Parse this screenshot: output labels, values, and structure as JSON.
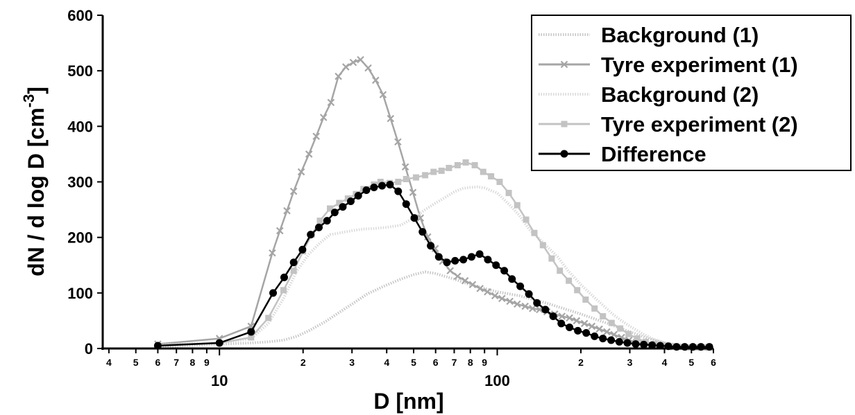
{
  "chart_data": {
    "type": "line",
    "xscale": "log",
    "xlim": [
      3.8,
      600
    ],
    "ylim": [
      0,
      600
    ],
    "xlabel": "D [nm]",
    "ylabel": "dN / d log D [cm-3]",
    "ylabel_parts": {
      "main": "dN / d log D [cm",
      "sup": "-3",
      "end": "]"
    },
    "yticks": [
      "0",
      "100",
      "200",
      "300",
      "400",
      "500",
      "600"
    ],
    "yticks_values": [
      0,
      100,
      200,
      300,
      400,
      500,
      600
    ],
    "xticks_minor": [
      {
        "v": 4,
        "label": "4"
      },
      {
        "v": 5,
        "label": "5"
      },
      {
        "v": 6,
        "label": "6"
      },
      {
        "v": 7,
        "label": "7"
      },
      {
        "v": 8,
        "label": "8"
      },
      {
        "v": 9,
        "label": "9"
      },
      {
        "v": 20,
        "label": "2"
      },
      {
        "v": 30,
        "label": "3"
      },
      {
        "v": 40,
        "label": "4"
      },
      {
        "v": 50,
        "label": "5"
      },
      {
        "v": 60,
        "label": "6"
      },
      {
        "v": 70,
        "label": "7"
      },
      {
        "v": 80,
        "label": "8"
      },
      {
        "v": 90,
        "label": "9"
      },
      {
        "v": 200,
        "label": "2"
      },
      {
        "v": 300,
        "label": "3"
      },
      {
        "v": 400,
        "label": "4"
      },
      {
        "v": 500,
        "label": "5"
      },
      {
        "v": 600,
        "label": "6"
      }
    ],
    "xticks_major": [
      {
        "v": 10,
        "label": "10"
      },
      {
        "v": 100,
        "label": "100"
      }
    ],
    "legend_position": "top-right",
    "grid": false,
    "series": [
      {
        "name": "Background (1)",
        "color": "#c6c6c6",
        "style": "dotted",
        "marker": "none",
        "x": [
          6,
          10,
          13,
          15,
          17,
          19,
          21,
          24,
          27,
          30,
          34,
          39,
          45,
          50,
          55,
          60,
          70,
          80,
          90,
          100,
          120,
          150,
          200,
          250,
          300,
          350,
          400,
          450,
          500,
          560
        ],
        "y": [
          3,
          8,
          10,
          12,
          15,
          22,
          32,
          48,
          65,
          80,
          98,
          112,
          125,
          133,
          138,
          135,
          125,
          115,
          108,
          102,
          95,
          82,
          62,
          45,
          30,
          18,
          10,
          6,
          3,
          2
        ]
      },
      {
        "name": "Tyre experiment (1)",
        "color": "#a5a5a5",
        "style": "solid",
        "marker": "x",
        "x": [
          6,
          10,
          13,
          15.5,
          16.5,
          17.5,
          18.5,
          19.7,
          21,
          22.3,
          23.7,
          25.2,
          26.8,
          28.5,
          30.3,
          32.2,
          34.3,
          36.5,
          38.8,
          41.3,
          43.9,
          46.7,
          49.7,
          52.9,
          56.2,
          59.8,
          63.6,
          67.7,
          72,
          76.6,
          81.5,
          86.7,
          92.2,
          98.1,
          104,
          111,
          118,
          126,
          134,
          142,
          151,
          161,
          171,
          182,
          193,
          206,
          219,
          233,
          248,
          263,
          280,
          298,
          317,
          337,
          358,
          381,
          405,
          431,
          459,
          488,
          519,
          552,
          580
        ],
        "y": [
          8,
          18,
          40,
          172,
          212,
          248,
          283,
          318,
          350,
          382,
          416,
          443,
          490,
          507,
          515,
          520,
          505,
          483,
          457,
          414,
          372,
          327,
          281,
          235,
          201,
          180,
          157,
          140,
          130,
          122,
          115,
          108,
          102,
          95,
          90,
          85,
          80,
          76,
          72,
          70,
          66,
          62,
          58,
          55,
          50,
          45,
          40,
          35,
          30,
          25,
          20,
          15,
          11,
          8,
          6,
          5,
          4,
          3,
          3,
          2,
          2,
          2,
          2
        ]
      },
      {
        "name": "Background (2)",
        "color": "#d9d9d9",
        "style": "dotted",
        "marker": "none",
        "x": [
          6,
          10,
          13,
          15,
          17,
          19,
          21,
          23,
          25,
          27,
          30,
          33,
          36,
          40,
          45,
          50,
          55,
          60,
          65,
          70,
          75,
          80,
          85,
          90,
          100,
          110,
          120,
          130,
          140,
          150,
          165,
          180,
          200,
          220,
          240,
          260,
          280,
          300,
          330,
          360,
          400,
          450,
          500,
          560
        ],
        "y": [
          6,
          10,
          18,
          45,
          90,
          140,
          170,
          190,
          205,
          208,
          212,
          215,
          216,
          218,
          222,
          235,
          250,
          262,
          272,
          282,
          288,
          290,
          291,
          289,
          280,
          260,
          240,
          215,
          200,
          185,
          165,
          140,
          115,
          95,
          78,
          62,
          50,
          40,
          28,
          18,
          10,
          6,
          4,
          2
        ]
      },
      {
        "name": "Tyre experiment (2)",
        "color": "#c3c3c3",
        "style": "solid",
        "marker": "square",
        "x": [
          6,
          10,
          13,
          15,
          17,
          18.5,
          20,
          21.5,
          23,
          25,
          27,
          29,
          31,
          33,
          36,
          38,
          41,
          44,
          47,
          51,
          55,
          59,
          63,
          67,
          72,
          77,
          83,
          89,
          95,
          102,
          110,
          118,
          127,
          136,
          146,
          157,
          168,
          181,
          194,
          208,
          224,
          240,
          258,
          277,
          297,
          319,
          342,
          367,
          394,
          423,
          454,
          487,
          523,
          560
        ],
        "y": [
          6,
          10,
          20,
          55,
          105,
          140,
          175,
          205,
          230,
          252,
          262,
          270,
          278,
          287,
          295,
          300,
          298,
          300,
          305,
          308,
          312,
          318,
          320,
          325,
          330,
          335,
          330,
          318,
          310,
          300,
          280,
          258,
          232,
          208,
          186,
          162,
          140,
          122,
          105,
          88,
          72,
          58,
          46,
          36,
          26,
          18,
          12,
          8,
          6,
          4,
          3,
          2,
          2,
          2
        ]
      },
      {
        "name": "Difference",
        "color": "#000000",
        "style": "solid",
        "marker": "circle",
        "x": [
          6,
          10,
          13,
          15.6,
          17.1,
          18.5,
          19.9,
          21.3,
          22.8,
          24.4,
          26,
          27.8,
          29.7,
          31.6,
          33.8,
          36,
          38.5,
          41.1,
          44,
          47,
          50.3,
          53.8,
          57.6,
          61.6,
          65.9,
          70.5,
          75.5,
          80.8,
          86.4,
          92.5,
          99,
          106,
          113,
          121,
          130,
          139,
          149,
          159,
          170,
          182,
          195,
          209,
          224,
          240,
          257,
          275,
          294,
          315,
          337,
          361,
          386,
          413,
          442,
          473,
          506,
          541,
          580
        ],
        "y": [
          5,
          10,
          30,
          100,
          128,
          155,
          178,
          205,
          218,
          230,
          245,
          255,
          265,
          275,
          285,
          290,
          293,
          295,
          283,
          260,
          235,
          210,
          185,
          165,
          155,
          158,
          160,
          165,
          170,
          160,
          150,
          140,
          125,
          112,
          98,
          82,
          70,
          58,
          45,
          38,
          32,
          28,
          22,
          18,
          15,
          12,
          10,
          8,
          7,
          6,
          5,
          4,
          3,
          3,
          3,
          3,
          3
        ]
      }
    ]
  }
}
